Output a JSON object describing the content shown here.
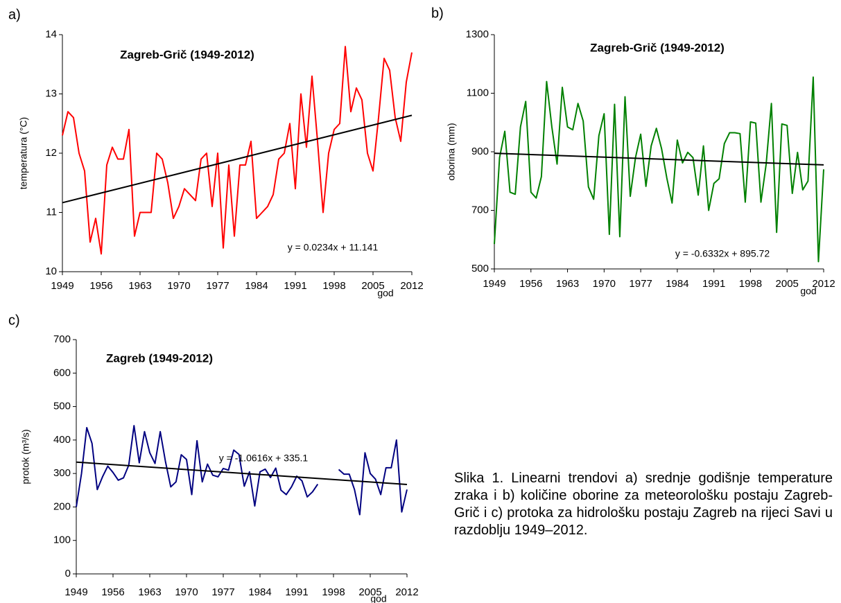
{
  "chart_data": [
    {
      "type": "line",
      "label": "a)",
      "title": "Zagreb-Grič (1949-2012)",
      "ylabel": "temperatura (°C)",
      "xlabel": "god",
      "x": [
        1949,
        1950,
        1951,
        1952,
        1953,
        1954,
        1955,
        1956,
        1957,
        1958,
        1959,
        1960,
        1961,
        1962,
        1963,
        1964,
        1965,
        1966,
        1967,
        1968,
        1969,
        1970,
        1971,
        1972,
        1973,
        1974,
        1975,
        1976,
        1977,
        1978,
        1979,
        1980,
        1981,
        1982,
        1983,
        1984,
        1985,
        1986,
        1987,
        1988,
        1989,
        1990,
        1991,
        1992,
        1993,
        1994,
        1995,
        1996,
        1997,
        1998,
        1999,
        2000,
        2001,
        2002,
        2003,
        2004,
        2005,
        2006,
        2007,
        2008,
        2009,
        2010,
        2011,
        2012
      ],
      "series": [
        {
          "color": "#ff0000",
          "values": [
            12.3,
            12.7,
            12.6,
            12.0,
            11.7,
            10.5,
            10.9,
            10.3,
            11.8,
            12.1,
            11.9,
            11.9,
            12.4,
            10.6,
            11.0,
            11.0,
            11.0,
            12.0,
            11.9,
            11.5,
            10.9,
            11.1,
            11.4,
            11.3,
            11.2,
            11.9,
            12.0,
            11.1,
            12.0,
            10.4,
            11.8,
            10.6,
            11.8,
            11.8,
            12.2,
            10.9,
            11.0,
            11.1,
            11.3,
            11.9,
            12.0,
            12.5,
            11.4,
            13.0,
            12.1,
            13.3,
            12.2,
            11.0,
            12.0,
            12.4,
            12.5,
            13.8,
            12.7,
            13.1,
            12.9,
            12.0,
            11.7,
            12.6,
            13.6,
            13.4,
            12.6,
            12.2,
            13.2,
            13.7
          ]
        }
      ],
      "trendline": {
        "label": "y = 0.0234x + 11.141",
        "slope": 0.0234,
        "intercept": 11.141,
        "color": "#000000"
      },
      "xlim": [
        1949,
        2012
      ],
      "xticks": [
        1949,
        1956,
        1963,
        1970,
        1977,
        1984,
        1991,
        1998,
        2005,
        2012
      ],
      "ylim": [
        10,
        14
      ],
      "yticks": [
        10,
        11,
        12,
        13,
        14
      ]
    },
    {
      "type": "line",
      "label": "b)",
      "title": "Zagreb-Grič (1949-2012)",
      "ylabel": "oborina (mm)",
      "xlabel": "god",
      "x": [
        1949,
        1950,
        1951,
        1952,
        1953,
        1954,
        1955,
        1956,
        1957,
        1958,
        1959,
        1960,
        1961,
        1962,
        1963,
        1964,
        1965,
        1966,
        1967,
        1968,
        1969,
        1970,
        1971,
        1972,
        1973,
        1974,
        1975,
        1976,
        1977,
        1978,
        1979,
        1980,
        1981,
        1982,
        1983,
        1984,
        1985,
        1986,
        1987,
        1988,
        1989,
        1990,
        1991,
        1992,
        1993,
        1994,
        1995,
        1996,
        1997,
        1998,
        1999,
        2000,
        2001,
        2002,
        2003,
        2004,
        2005,
        2006,
        2007,
        2008,
        2009,
        2010,
        2011,
        2012
      ],
      "series": [
        {
          "color": "#008000",
          "values": [
            585,
            880,
            970,
            762,
            755,
            985,
            1072,
            762,
            742,
            815,
            1140,
            985,
            858,
            1120,
            985,
            975,
            1065,
            1005,
            780,
            738,
            955,
            1030,
            618,
            1062,
            610,
            1088,
            748,
            880,
            960,
            782,
            920,
            980,
            910,
            810,
            725,
            940,
            862,
            898,
            880,
            752,
            920,
            700,
            792,
            808,
            928,
            965,
            965,
            962,
            728,
            1002,
            998,
            728,
            858,
            1065,
            625,
            995,
            990,
            758,
            898,
            770,
            800,
            1155,
            525,
            840
          ]
        }
      ],
      "trendline": {
        "label": "y = -0.6332x + 895.72",
        "slope": -0.6332,
        "intercept": 895.72,
        "color": "#000000"
      },
      "xlim": [
        1949,
        2012
      ],
      "xticks": [
        1949,
        1956,
        1963,
        1970,
        1977,
        1984,
        1991,
        1998,
        2005,
        2012
      ],
      "ylim": [
        500,
        1300
      ],
      "yticks": [
        500,
        700,
        900,
        1100,
        1300
      ]
    },
    {
      "type": "line",
      "label": "c)",
      "title": "Zagreb (1949-2012)",
      "ylabel": "protok (m³/s)",
      "xlabel": "god",
      "x": [
        1949,
        1950,
        1951,
        1952,
        1953,
        1954,
        1955,
        1956,
        1957,
        1958,
        1959,
        1960,
        1961,
        1962,
        1963,
        1964,
        1965,
        1966,
        1967,
        1968,
        1969,
        1970,
        1971,
        1972,
        1973,
        1974,
        1975,
        1976,
        1977,
        1978,
        1979,
        1980,
        1981,
        1982,
        1983,
        1984,
        1985,
        1986,
        1987,
        1988,
        1989,
        1990,
        1991,
        1992,
        1993,
        1994,
        1995,
        1996,
        1997,
        1998,
        1999,
        2000,
        2001,
        2002,
        2003,
        2004,
        2005,
        2006,
        2007,
        2008,
        2009,
        2010,
        2011,
        2012
      ],
      "series": [
        {
          "color": "#000080",
          "values": [
            200,
            300,
            437,
            390,
            252,
            290,
            322,
            303,
            280,
            287,
            325,
            443,
            332,
            425,
            362,
            330,
            425,
            335,
            260,
            275,
            356,
            342,
            237,
            398,
            275,
            328,
            295,
            290,
            315,
            310,
            370,
            357,
            262,
            305,
            203,
            305,
            313,
            288,
            316,
            250,
            237,
            260,
            292,
            278,
            230,
            245,
            268,
            null,
            null,
            null,
            312,
            298,
            298,
            252,
            177,
            362,
            300,
            283,
            237,
            317,
            317,
            400,
            185,
            252
          ]
        }
      ],
      "trendline": {
        "label": "y = -1.0616x + 335.1",
        "slope": -1.0616,
        "intercept": 335.1,
        "color": "#000000"
      },
      "xlim": [
        1949,
        2012
      ],
      "xticks": [
        1949,
        1956,
        1963,
        1970,
        1977,
        1984,
        1991,
        1998,
        2005,
        2012
      ],
      "ylim": [
        0,
        700
      ],
      "yticks": [
        0,
        100,
        200,
        300,
        400,
        500,
        600,
        700
      ]
    }
  ],
  "caption": "Slika 1. Linearni trendovi a) srednje godišnje temperature zraka i b) količine oborine za meteorološku postaju Zagreb-Grič i c) protoka za hidrološku postaju Zagreb na rijeci Savi u razdoblju 1949–2012."
}
